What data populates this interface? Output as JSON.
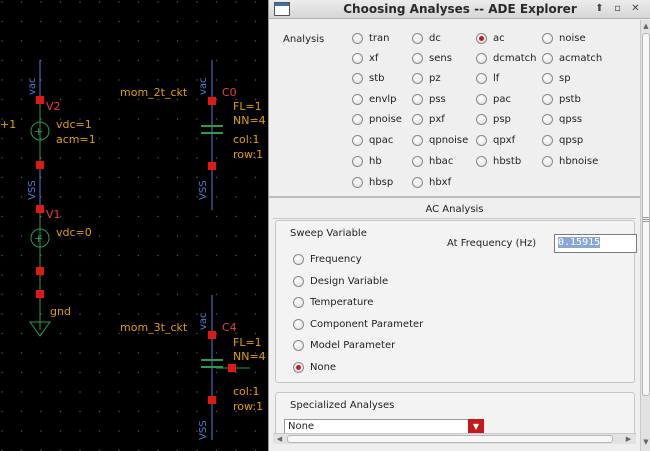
{
  "schematic": {
    "net_labels": [
      "vac",
      "VSS",
      "vac",
      "VSS",
      "vac",
      "VSS",
      "gnd"
    ],
    "instances": {
      "v2": "V2",
      "v2_params": [
        "vdc=1",
        "acm=1"
      ],
      "v1": "V1",
      "v1_params": [
        "vdc=0"
      ],
      "c0": "C0",
      "c0_params": [
        "FL=1",
        "NN=4",
        "col:1",
        "row:1"
      ],
      "c4": "C4",
      "c4_params": [
        "FL=1",
        "NN=4",
        "col:1",
        "row:1"
      ],
      "cell1": "mom_2t_ckt",
      "cell2": "mom_3t_ckt",
      "left_edge_text": "+1"
    }
  },
  "dialog": {
    "title": "Choosing Analyses -- ADE Explorer",
    "analysis_label": "Analysis",
    "analyses": [
      [
        "tran",
        "dc",
        "ac",
        "noise"
      ],
      [
        "xf",
        "sens",
        "dcmatch",
        "acmatch"
      ],
      [
        "stb",
        "pz",
        "lf",
        "sp"
      ],
      [
        "envlp",
        "pss",
        "pac",
        "pstb"
      ],
      [
        "pnoise",
        "pxf",
        "psp",
        "qpss"
      ],
      [
        "qpac",
        "qpnoise",
        "qpxf",
        "qpsp"
      ],
      [
        "hb",
        "hbac",
        "hbstb",
        "hbnoise"
      ],
      [
        "hbsp",
        "hbxf"
      ]
    ],
    "selected_analysis": "ac",
    "section_title": "AC Analysis",
    "sweep_variable_label": "Sweep Variable",
    "sweep_options": [
      "Frequency",
      "Design Variable",
      "Temperature",
      "Component Parameter",
      "Model Parameter",
      "None"
    ],
    "selected_sweep": "None",
    "at_frequency_label": "At Frequency (Hz)",
    "at_frequency_value": "0.15915",
    "specialized_label": "Specialized Analyses",
    "specialized_value": "None"
  },
  "colors": {
    "selected_radio": "#d01818",
    "net_label": "#4d7fd6",
    "instance_label": "#e0a000",
    "pin": "#e01818",
    "wire": "#2a9d4a"
  }
}
